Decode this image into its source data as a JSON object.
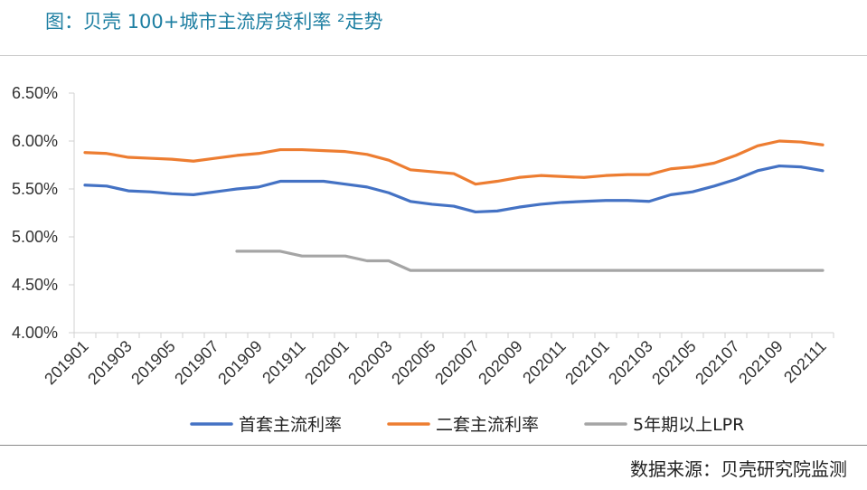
{
  "header": {
    "title": "图：贝壳 100+城市主流房贷利率 ²走势"
  },
  "footer": {
    "source": "数据来源：贝壳研究院监测"
  },
  "chart_data": {
    "type": "line",
    "ylim": [
      4.0,
      6.5
    ],
    "yticks": [
      "4.00%",
      "4.50%",
      "5.00%",
      "5.50%",
      "6.00%",
      "6.50%"
    ],
    "xtick_labels": [
      "201901",
      "201903",
      "201905",
      "201907",
      "201909",
      "201911",
      "202001",
      "202003",
      "202005",
      "202007",
      "202009",
      "202011",
      "202101",
      "202103",
      "202105",
      "202107",
      "202109",
      "202111"
    ],
    "grid": false,
    "legend_position": "bottom",
    "x": [
      "201901",
      "201902",
      "201903",
      "201904",
      "201905",
      "201906",
      "201907",
      "201908",
      "201909",
      "201910",
      "201911",
      "201912",
      "202001",
      "202002",
      "202003",
      "202004",
      "202005",
      "202006",
      "202007",
      "202008",
      "202009",
      "202010",
      "202011",
      "202012",
      "202101",
      "202102",
      "202103",
      "202104",
      "202105",
      "202106",
      "202107",
      "202108",
      "202109",
      "202110",
      "202111"
    ],
    "series": [
      {
        "name": "首套主流利率",
        "color": "#4472c4",
        "values": [
          5.54,
          5.53,
          5.48,
          5.47,
          5.45,
          5.44,
          5.47,
          5.5,
          5.52,
          5.58,
          5.58,
          5.58,
          5.55,
          5.52,
          5.46,
          5.37,
          5.34,
          5.32,
          5.26,
          5.27,
          5.31,
          5.34,
          5.36,
          5.37,
          5.38,
          5.38,
          5.37,
          5.44,
          5.47,
          5.53,
          5.6,
          5.69,
          5.74,
          5.73,
          5.69
        ]
      },
      {
        "name": "二套主流利率",
        "color": "#ed7d31",
        "values": [
          5.88,
          5.87,
          5.83,
          5.82,
          5.81,
          5.79,
          5.82,
          5.85,
          5.87,
          5.91,
          5.91,
          5.9,
          5.89,
          5.86,
          5.8,
          5.7,
          5.68,
          5.66,
          5.55,
          5.58,
          5.62,
          5.64,
          5.63,
          5.62,
          5.64,
          5.65,
          5.65,
          5.71,
          5.73,
          5.77,
          5.85,
          5.95,
          6.0,
          5.99,
          5.96
        ]
      },
      {
        "name": "5年期以上LPR",
        "color": "#a5a5a5",
        "values": [
          null,
          null,
          null,
          null,
          null,
          null,
          null,
          4.85,
          4.85,
          4.85,
          4.8,
          4.8,
          4.8,
          4.75,
          4.75,
          4.65,
          4.65,
          4.65,
          4.65,
          4.65,
          4.65,
          4.65,
          4.65,
          4.65,
          4.65,
          4.65,
          4.65,
          4.65,
          4.65,
          4.65,
          4.65,
          4.65,
          4.65,
          4.65,
          4.65
        ]
      }
    ]
  }
}
